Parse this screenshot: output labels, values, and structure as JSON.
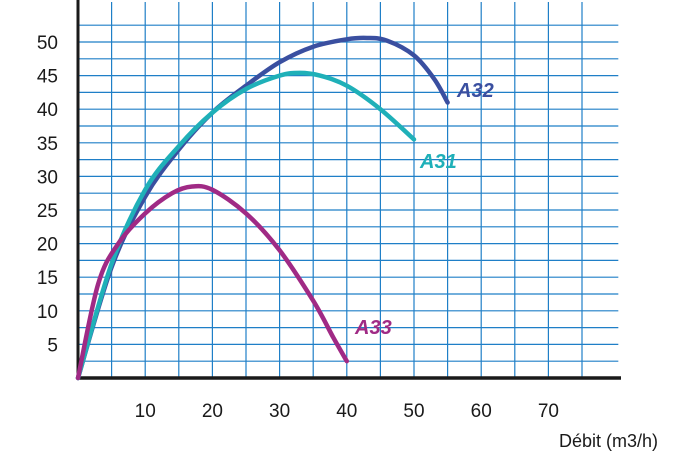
{
  "chart_data": {
    "type": "line",
    "title": "",
    "xlabel": "Débit (m3/h)",
    "ylabel": "",
    "xlim": [
      0,
      81
    ],
    "ylim": [
      0,
      55
    ],
    "grid": true,
    "x_ticks": [
      10,
      20,
      30,
      40,
      50,
      60,
      70
    ],
    "x_tick_labels": [
      "10",
      "20",
      "30",
      "40",
      "50",
      "60",
      "70"
    ],
    "y_ticks": [
      5,
      10,
      15,
      20,
      25,
      30,
      35,
      40,
      45,
      50
    ],
    "y_tick_labels": [
      "5",
      "10",
      "15",
      "20",
      "25",
      "30",
      "35",
      "40",
      "45",
      "50"
    ],
    "colors": {
      "grid": "#1f7fc7",
      "axis": "#1a1a1a"
    },
    "series": [
      {
        "name": "A32",
        "color": "#3a4fa0",
        "x": [
          0,
          5,
          10,
          15,
          20,
          25,
          30,
          35,
          40,
          43,
          46,
          50,
          53,
          55
        ],
        "y": [
          0,
          16.5,
          27,
          34,
          39.5,
          43.5,
          47,
          49.3,
          50.4,
          50.6,
          50.2,
          48,
          44.5,
          41
        ]
      },
      {
        "name": "A31",
        "color": "#1fb0b8",
        "x": [
          0,
          5,
          10,
          15,
          20,
          25,
          30,
          33,
          36,
          40,
          45,
          50
        ],
        "y": [
          0,
          17,
          28,
          34.5,
          39.5,
          43,
          45,
          45.4,
          45,
          43.5,
          40,
          35.5
        ]
      },
      {
        "name": "A33",
        "color": "#a02a85",
        "x": [
          0,
          3,
          6,
          10,
          14,
          17,
          20,
          25,
          30,
          35,
          38,
          40
        ],
        "y": [
          0,
          14,
          20,
          24.5,
          27.5,
          28.5,
          28,
          24.5,
          19,
          11.5,
          6,
          2.5
        ]
      }
    ]
  }
}
